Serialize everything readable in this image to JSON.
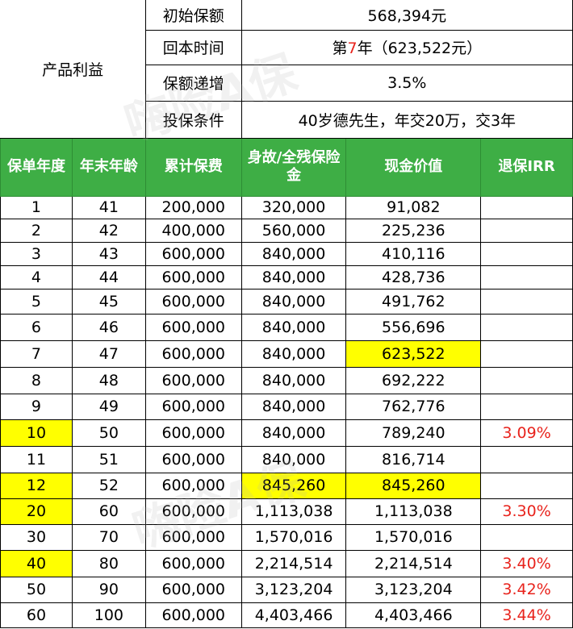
{
  "summary": {
    "section_label": "产品利益",
    "rows": [
      {
        "label": "初始保额",
        "value": "568,394元"
      },
      {
        "label": "回本时间",
        "value_prefix": "第",
        "value_highlight": "7",
        "value_suffix": "年（623,522元）"
      },
      {
        "label": "保额递增",
        "value": "3.5%"
      },
      {
        "label": "投保条件",
        "value": "40岁德先生，年交20万，交3年"
      }
    ]
  },
  "table": {
    "headers": [
      "保单年度",
      "年末年龄",
      "累计保费",
      "身故/全残保险金",
      "现金价值",
      "退保IRR"
    ],
    "rows": [
      {
        "year": "1",
        "age": "41",
        "premium": "200,000",
        "death": "320,000",
        "cash": "91,082",
        "irr": ""
      },
      {
        "year": "2",
        "age": "42",
        "premium": "400,000",
        "death": "560,000",
        "cash": "225,236",
        "irr": ""
      },
      {
        "year": "3",
        "age": "43",
        "premium": "600,000",
        "death": "840,000",
        "cash": "410,116",
        "irr": ""
      },
      {
        "year": "4",
        "age": "44",
        "premium": "600,000",
        "death": "840,000",
        "cash": "428,736",
        "irr": ""
      },
      {
        "year": "5",
        "age": "45",
        "premium": "600,000",
        "death": "840,000",
        "cash": "491,762",
        "irr": ""
      },
      {
        "year": "6",
        "age": "46",
        "premium": "600,000",
        "death": "840,000",
        "cash": "556,696",
        "irr": ""
      },
      {
        "year": "7",
        "age": "47",
        "premium": "600,000",
        "death": "840,000",
        "cash": "623,522",
        "irr": ""
      },
      {
        "year": "8",
        "age": "48",
        "premium": "600,000",
        "death": "840,000",
        "cash": "692,222",
        "irr": ""
      },
      {
        "year": "9",
        "age": "49",
        "premium": "600,000",
        "death": "840,000",
        "cash": "762,776",
        "irr": ""
      },
      {
        "year": "10",
        "age": "50",
        "premium": "600,000",
        "death": "840,000",
        "cash": "789,240",
        "irr": "3.09%"
      },
      {
        "year": "11",
        "age": "51",
        "premium": "600,000",
        "death": "840,000",
        "cash": "816,714",
        "irr": ""
      },
      {
        "year": "12",
        "age": "52",
        "premium": "600,000",
        "death": "845,260",
        "cash": "845,260",
        "irr": ""
      },
      {
        "year": "20",
        "age": "60",
        "premium": "600,000",
        "death": "1,113,038",
        "cash": "1,113,038",
        "irr": "3.30%"
      },
      {
        "year": "30",
        "age": "70",
        "premium": "600,000",
        "death": "1,570,016",
        "cash": "1,570,016",
        "irr": ""
      },
      {
        "year": "40",
        "age": "80",
        "premium": "600,000",
        "death": "2,214,514",
        "cash": "2,214,514",
        "irr": "3.40%"
      },
      {
        "year": "50",
        "age": "90",
        "premium": "600,000",
        "death": "3,123,204",
        "cash": "3,123,204",
        "irr": "3.42%"
      },
      {
        "year": "60",
        "age": "100",
        "premium": "600,000",
        "death": "4,403,466",
        "cash": "4,403,466",
        "irr": "3.44%"
      }
    ],
    "highlights": {
      "year_cells": [
        "10",
        "12",
        "20",
        "40"
      ],
      "cash_cells": [
        "7",
        "12"
      ],
      "death_cells": [
        "12"
      ],
      "color": "#ffff00"
    },
    "colors": {
      "header_bg": "#3eae45",
      "header_text": "#ffffff",
      "irr_text": "#e8231c"
    }
  },
  "watermark": {
    "text": "嗨险A保"
  }
}
